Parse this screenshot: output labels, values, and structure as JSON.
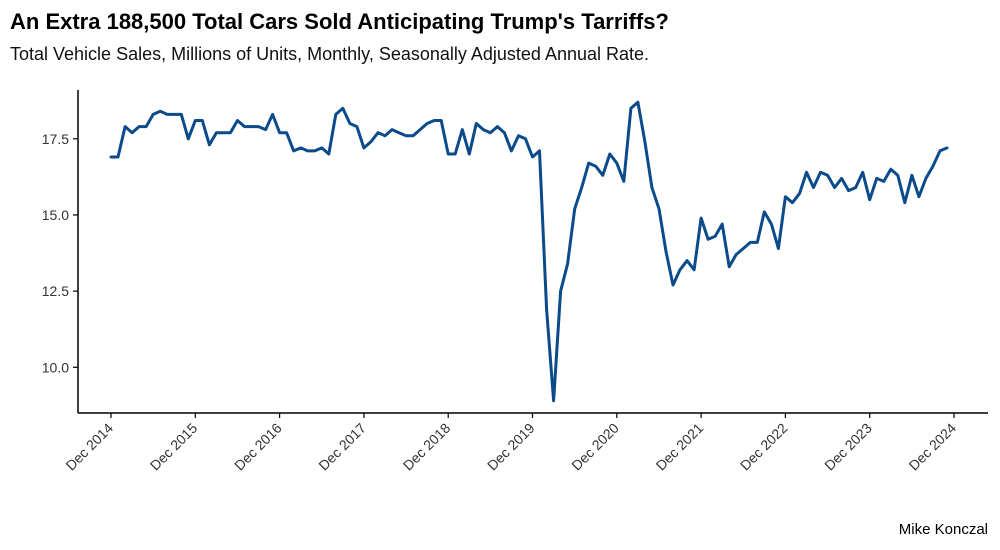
{
  "title": "An Extra 188,500 Total Cars Sold Anticipating Trump's Tarriffs?",
  "subtitle": "Total Vehicle Sales, Millions of Units, Monthly, Seasonally Adjusted Annual Rate.",
  "caption": "Mike Konczal",
  "colors": {
    "line": "#0B4A8B",
    "axis": "#000000",
    "tick_text": "#333333"
  },
  "chart_data": {
    "type": "line",
    "title": "An Extra 188,500 Total Cars Sold Anticipating Trump's Tarriffs?",
    "subtitle": "Total Vehicle Sales, Millions of Units, Monthly, Seasonally Adjusted Annual Rate.",
    "xlabel": "",
    "ylabel": "",
    "grid": false,
    "legend": "none",
    "x_start": "Dec 2014",
    "frequency": "monthly",
    "x_ticks": [
      "Dec 2014",
      "Dec 2015",
      "Dec 2016",
      "Dec 2017",
      "Dec 2018",
      "Dec 2019",
      "Dec 2020",
      "Dec 2021",
      "Dec 2022",
      "Dec 2023",
      "Dec 2024"
    ],
    "y_ticks": [
      "10.0",
      "12.5",
      "15.0",
      "17.5"
    ],
    "ylim": [
      8.5,
      19.1
    ],
    "series": [
      {
        "values": [
          16.9,
          16.9,
          17.9,
          17.7,
          17.9,
          17.9,
          18.3,
          18.4,
          18.3,
          18.3,
          18.3,
          17.5,
          18.1,
          18.1,
          17.3,
          17.7,
          17.7,
          17.7,
          18.1,
          17.9,
          17.9,
          17.9,
          17.8,
          18.3,
          17.7,
          17.7,
          17.1,
          17.2,
          17.1,
          17.1,
          17.2,
          17.0,
          18.3,
          18.5,
          18.0,
          17.9,
          17.2,
          17.4,
          17.7,
          17.6,
          17.8,
          17.7,
          17.6,
          17.6,
          17.8,
          18.0,
          18.1,
          18.1,
          17.0,
          17.0,
          17.8,
          17.0,
          18.0,
          17.8,
          17.7,
          17.9,
          17.7,
          17.1,
          17.6,
          17.5,
          16.9,
          17.1,
          11.9,
          8.9,
          12.5,
          13.4,
          15.2,
          15.9,
          16.7,
          16.6,
          16.3,
          17.0,
          16.7,
          16.1,
          18.5,
          18.7,
          17.4,
          15.9,
          15.2,
          13.8,
          12.7,
          13.2,
          13.5,
          13.2,
          14.9,
          14.2,
          14.3,
          14.7,
          13.3,
          13.7,
          13.9,
          14.1,
          14.1,
          15.1,
          14.7,
          13.9,
          15.6,
          15.4,
          15.7,
          16.4,
          15.9,
          16.4,
          16.3,
          15.9,
          16.2,
          15.8,
          15.9,
          16.4,
          15.5,
          16.2,
          16.1,
          16.5,
          16.3,
          15.4,
          16.3,
          15.6,
          16.2,
          16.6,
          17.1,
          17.2
        ]
      }
    ]
  }
}
